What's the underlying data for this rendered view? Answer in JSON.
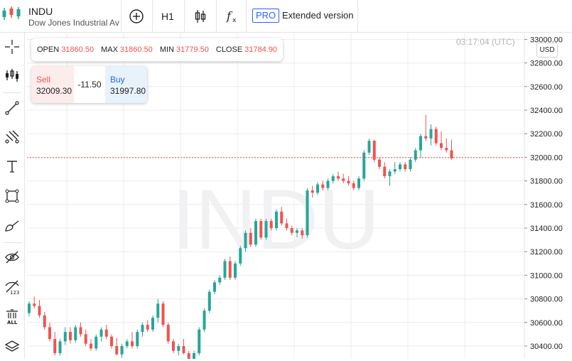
{
  "symbol": {
    "ticker": "INDU",
    "description": "Dow Jones Industrial Average",
    "watermark": "INDU"
  },
  "toolbar": {
    "interval": "H1",
    "pro_badge": "PRO",
    "extended_label": "Extended version",
    "icons": [
      "compare-plus-icon",
      "candles-type-icon",
      "indicators-fx-icon"
    ]
  },
  "left_tools": [
    "crosshair-icon",
    "chart-type-icon",
    "trend-line-icon",
    "fib-tool-icon",
    "text-tool-icon",
    "rectangle-tool-icon",
    "brush-tool-icon",
    "hide-drawings-icon",
    "hide-indicators-icon",
    "delete-all-icon",
    "layers-icon"
  ],
  "ohlc": [
    {
      "label": "OPEN",
      "value": "31860.50"
    },
    {
      "label": "MAX",
      "value": "31860.50"
    },
    {
      "label": "MIN",
      "value": "31779.50"
    },
    {
      "label": "CLOSE",
      "value": "31784.90"
    }
  ],
  "trade": {
    "sell_label": "Sell",
    "sell_price": "32009.30",
    "spread": "-11.50",
    "buy_label": "Buy",
    "buy_price": "31997.80"
  },
  "clock": "03:17:04 (UTC)",
  "currency": "USD",
  "colors": {
    "up": "#26a69a",
    "down": "#ef5350",
    "accent": "#2962ff",
    "grid": "#ececec"
  },
  "chart_data": {
    "type": "candlestick",
    "title": "",
    "xlabel": "",
    "ylabel": "",
    "ylim": [
      30300,
      33050
    ],
    "y_ticks": [
      "33000.00",
      "32800.00",
      "32600.00",
      "32400.00",
      "32200.00",
      "32000.00",
      "31800.00",
      "31600.00",
      "31400.00",
      "31200.00",
      "31000.00",
      "30800.00",
      "30600.00",
      "30400.00"
    ],
    "current_price": 31997.8,
    "candles": [
      {
        "o": 30680,
        "h": 30780,
        "l": 30650,
        "c": 30760
      },
      {
        "o": 30760,
        "h": 30820,
        "l": 30720,
        "c": 30740
      },
      {
        "o": 30740,
        "h": 30790,
        "l": 30640,
        "c": 30660
      },
      {
        "o": 30660,
        "h": 30690,
        "l": 30540,
        "c": 30560
      },
      {
        "o": 30560,
        "h": 30600,
        "l": 30440,
        "c": 30460
      },
      {
        "o": 30460,
        "h": 30520,
        "l": 30320,
        "c": 30340
      },
      {
        "o": 30340,
        "h": 30460,
        "l": 30320,
        "c": 30440
      },
      {
        "o": 30440,
        "h": 30560,
        "l": 30410,
        "c": 30520
      },
      {
        "o": 30520,
        "h": 30560,
        "l": 30420,
        "c": 30450
      },
      {
        "o": 30450,
        "h": 30580,
        "l": 30430,
        "c": 30560
      },
      {
        "o": 30560,
        "h": 30600,
        "l": 30480,
        "c": 30500
      },
      {
        "o": 30500,
        "h": 30540,
        "l": 30400,
        "c": 30420
      },
      {
        "o": 30420,
        "h": 30460,
        "l": 30360,
        "c": 30380
      },
      {
        "o": 30380,
        "h": 30500,
        "l": 30360,
        "c": 30480
      },
      {
        "o": 30480,
        "h": 30560,
        "l": 30440,
        "c": 30540
      },
      {
        "o": 30540,
        "h": 30580,
        "l": 30460,
        "c": 30480
      },
      {
        "o": 30480,
        "h": 30500,
        "l": 30380,
        "c": 30400
      },
      {
        "o": 30400,
        "h": 30470,
        "l": 30320,
        "c": 30330
      },
      {
        "o": 30330,
        "h": 30420,
        "l": 30300,
        "c": 30400
      },
      {
        "o": 30400,
        "h": 30460,
        "l": 30380,
        "c": 30440
      },
      {
        "o": 30440,
        "h": 30520,
        "l": 30380,
        "c": 30400
      },
      {
        "o": 30400,
        "h": 30540,
        "l": 30380,
        "c": 30520
      },
      {
        "o": 30520,
        "h": 30600,
        "l": 30480,
        "c": 30580
      },
      {
        "o": 30580,
        "h": 30620,
        "l": 30520,
        "c": 30540
      },
      {
        "o": 30540,
        "h": 30660,
        "l": 30520,
        "c": 30640
      },
      {
        "o": 30640,
        "h": 30800,
        "l": 30600,
        "c": 30760
      },
      {
        "o": 30760,
        "h": 30780,
        "l": 30560,
        "c": 30580
      },
      {
        "o": 30580,
        "h": 30600,
        "l": 30420,
        "c": 30440
      },
      {
        "o": 30440,
        "h": 30460,
        "l": 30340,
        "c": 30360
      },
      {
        "o": 30360,
        "h": 30420,
        "l": 30320,
        "c": 30400
      },
      {
        "o": 30400,
        "h": 30460,
        "l": 30330,
        "c": 30340
      },
      {
        "o": 30340,
        "h": 30360,
        "l": 30220,
        "c": 30240
      },
      {
        "o": 30240,
        "h": 30360,
        "l": 30220,
        "c": 30340
      },
      {
        "o": 30340,
        "h": 30560,
        "l": 30320,
        "c": 30540
      },
      {
        "o": 30540,
        "h": 30720,
        "l": 30520,
        "c": 30700
      },
      {
        "o": 30700,
        "h": 30880,
        "l": 30680,
        "c": 30860
      },
      {
        "o": 30860,
        "h": 30960,
        "l": 30840,
        "c": 30940
      },
      {
        "o": 30940,
        "h": 31000,
        "l": 30920,
        "c": 30980
      },
      {
        "o": 30980,
        "h": 31140,
        "l": 30960,
        "c": 31120
      },
      {
        "o": 31120,
        "h": 31160,
        "l": 30960,
        "c": 30980
      },
      {
        "o": 30980,
        "h": 31120,
        "l": 30960,
        "c": 31100
      },
      {
        "o": 31100,
        "h": 31250,
        "l": 31080,
        "c": 31230
      },
      {
        "o": 31230,
        "h": 31380,
        "l": 31200,
        "c": 31360
      },
      {
        "o": 31360,
        "h": 31400,
        "l": 31240,
        "c": 31260
      },
      {
        "o": 31260,
        "h": 31480,
        "l": 31240,
        "c": 31460
      },
      {
        "o": 31460,
        "h": 31480,
        "l": 31300,
        "c": 31320
      },
      {
        "o": 31320,
        "h": 31480,
        "l": 31300,
        "c": 31460
      },
      {
        "o": 31460,
        "h": 31480,
        "l": 31380,
        "c": 31400
      },
      {
        "o": 31400,
        "h": 31560,
        "l": 31380,
        "c": 31540
      },
      {
        "o": 31540,
        "h": 31580,
        "l": 31420,
        "c": 31440
      },
      {
        "o": 31440,
        "h": 31480,
        "l": 31380,
        "c": 31400
      },
      {
        "o": 31400,
        "h": 31420,
        "l": 31340,
        "c": 31360
      },
      {
        "o": 31360,
        "h": 31400,
        "l": 31320,
        "c": 31380
      },
      {
        "o": 31380,
        "h": 31400,
        "l": 31310,
        "c": 31340
      },
      {
        "o": 31340,
        "h": 31740,
        "l": 31320,
        "c": 31720
      },
      {
        "o": 31720,
        "h": 31760,
        "l": 31660,
        "c": 31700
      },
      {
        "o": 31700,
        "h": 31790,
        "l": 31680,
        "c": 31770
      },
      {
        "o": 31770,
        "h": 31800,
        "l": 31720,
        "c": 31740
      },
      {
        "o": 31740,
        "h": 31820,
        "l": 31720,
        "c": 31800
      },
      {
        "o": 31800,
        "h": 31860,
        "l": 31780,
        "c": 31840
      },
      {
        "o": 31840,
        "h": 31880,
        "l": 31800,
        "c": 31820
      },
      {
        "o": 31820,
        "h": 31860,
        "l": 31780,
        "c": 31800
      },
      {
        "o": 31800,
        "h": 31840,
        "l": 31760,
        "c": 31780
      },
      {
        "o": 31780,
        "h": 31800,
        "l": 31720,
        "c": 31740
      },
      {
        "o": 31740,
        "h": 31840,
        "l": 31720,
        "c": 31820
      },
      {
        "o": 31820,
        "h": 32060,
        "l": 31800,
        "c": 32040
      },
      {
        "o": 32040,
        "h": 32160,
        "l": 32020,
        "c": 32140
      },
      {
        "o": 32140,
        "h": 32150,
        "l": 31960,
        "c": 31980
      },
      {
        "o": 31980,
        "h": 32000,
        "l": 31900,
        "c": 31920
      },
      {
        "o": 31920,
        "h": 31960,
        "l": 31820,
        "c": 31840
      },
      {
        "o": 31840,
        "h": 31900,
        "l": 31760,
        "c": 31880
      },
      {
        "o": 31880,
        "h": 31960,
        "l": 31860,
        "c": 31900
      },
      {
        "o": 31900,
        "h": 31960,
        "l": 31880,
        "c": 31940
      },
      {
        "o": 31940,
        "h": 31960,
        "l": 31880,
        "c": 31900
      },
      {
        "o": 31900,
        "h": 32000,
        "l": 31880,
        "c": 31980
      },
      {
        "o": 31980,
        "h": 32080,
        "l": 31960,
        "c": 32060
      },
      {
        "o": 32060,
        "h": 32200,
        "l": 32000,
        "c": 32180
      },
      {
        "o": 32180,
        "h": 32360,
        "l": 32140,
        "c": 32160
      },
      {
        "o": 32160,
        "h": 32280,
        "l": 32100,
        "c": 32240
      },
      {
        "o": 32240,
        "h": 32260,
        "l": 32100,
        "c": 32120
      },
      {
        "o": 32120,
        "h": 32220,
        "l": 32060,
        "c": 32080
      },
      {
        "o": 32080,
        "h": 32160,
        "l": 32040,
        "c": 32060
      },
      {
        "o": 32060,
        "h": 32150,
        "l": 31980,
        "c": 31990
      }
    ]
  }
}
